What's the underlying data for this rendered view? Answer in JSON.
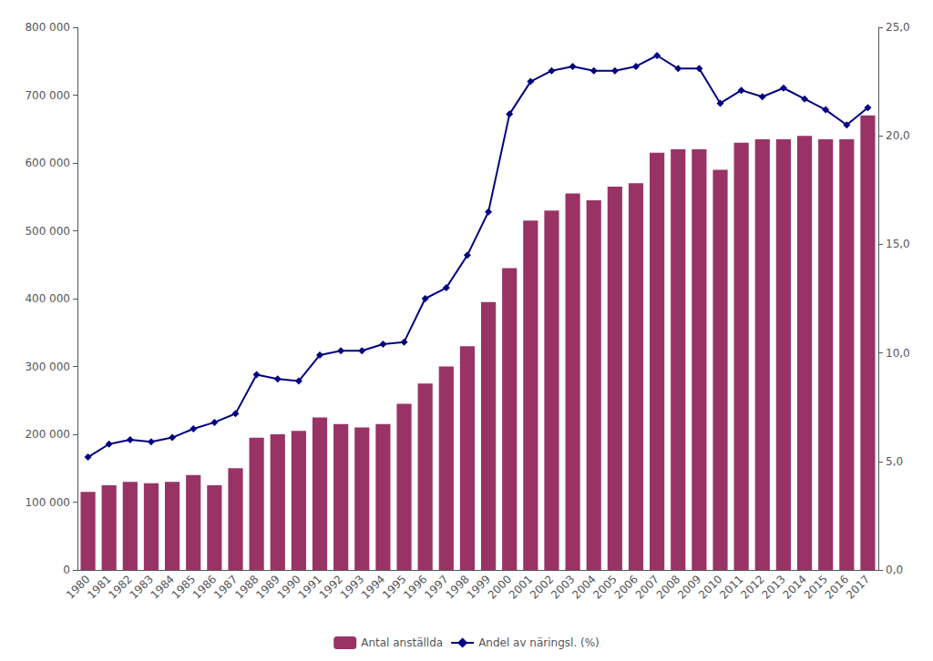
{
  "chart_data": {
    "type": "bar",
    "categories": [
      "1980",
      "1981",
      "1982",
      "1983",
      "1984",
      "1985",
      "1986",
      "1987",
      "1988",
      "1989",
      "1990",
      "1991",
      "1992",
      "1993",
      "1994",
      "1995",
      "1996",
      "1997",
      "1998",
      "1999",
      "2000",
      "2001",
      "2002",
      "2003",
      "2004",
      "2005",
      "2006",
      "2007",
      "2008",
      "2009",
      "2010",
      "2011",
      "2012",
      "2013",
      "2014",
      "2015",
      "2016",
      "2017"
    ],
    "series": [
      {
        "name": "Antal anställda",
        "type": "bar",
        "color": "#993366",
        "values": [
          115000,
          125000,
          130000,
          128000,
          130000,
          140000,
          125000,
          150000,
          195000,
          200000,
          205000,
          225000,
          215000,
          210000,
          215000,
          245000,
          275000,
          300000,
          330000,
          395000,
          445000,
          515000,
          530000,
          555000,
          545000,
          565000,
          570000,
          615000,
          620000,
          620000,
          590000,
          630000,
          635000,
          635000,
          640000,
          635000,
          635000,
          670000
        ]
      },
      {
        "name": "Andel av näringsl. (%)",
        "type": "line",
        "color": "#000080",
        "marker": "diamond",
        "axis": "y2",
        "values": [
          5.2,
          5.8,
          6.0,
          5.9,
          6.1,
          6.5,
          6.8,
          7.2,
          9.0,
          8.8,
          8.7,
          9.9,
          10.1,
          10.1,
          10.4,
          10.5,
          12.5,
          13.0,
          14.5,
          16.5,
          21.0,
          22.5,
          23.0,
          23.2,
          23.0,
          23.0,
          23.2,
          23.7,
          23.1,
          23.1,
          21.5,
          22.1,
          21.8,
          22.2,
          21.7,
          21.2,
          20.5,
          21.3
        ]
      }
    ],
    "ylim": [
      0,
      800000
    ],
    "yticks": [
      0,
      {
        "value": 100000,
        "label": "100 000"
      },
      {
        "value": 200000,
        "label": "200 000"
      },
      {
        "value": 300000,
        "label": "300 000"
      },
      {
        "value": 400000,
        "label": "400 000"
      },
      {
        "value": 500000,
        "label": "500 000"
      },
      {
        "value": 600000,
        "label": "600 000"
      },
      {
        "value": 700000,
        "label": "700 000"
      },
      {
        "value": 800000,
        "label": "800 000"
      }
    ],
    "y2lim": [
      0,
      25.0
    ],
    "y2ticks": [
      {
        "value": 0.0,
        "label": "0,0"
      },
      {
        "value": 5.0,
        "label": "5,0"
      },
      {
        "value": 10.0,
        "label": "10,0"
      },
      {
        "value": 15.0,
        "label": "15,0"
      },
      {
        "value": 20.0,
        "label": "20,0"
      },
      {
        "value": 25.0,
        "label": "25,0"
      }
    ],
    "grid": false,
    "legend": "bottom"
  }
}
